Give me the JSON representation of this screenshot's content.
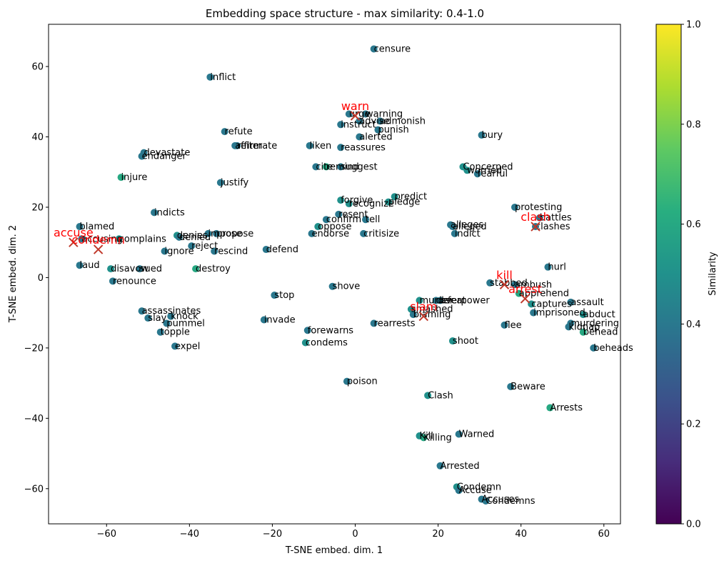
{
  "chart_data": {
    "type": "scatter",
    "title": "Embedding space structure - max similarity: 0.4-1.0",
    "xlabel": "T-SNE embed. dim. 1",
    "ylabel": "T-SNE embed. dim. 2",
    "xlim": [
      -74,
      64
    ],
    "ylim": [
      -70,
      72
    ],
    "xticks": [
      -60,
      -40,
      -20,
      0,
      20,
      40,
      60
    ],
    "yticks": [
      -60,
      -40,
      -20,
      0,
      20,
      40,
      60
    ],
    "grid": false,
    "colorbar": {
      "label": "Similarity",
      "colormap": "viridis",
      "range": [
        0.0,
        1.0
      ],
      "ticks": [
        "0.0",
        "0.2",
        "0.4",
        "0.6",
        "0.8",
        "1.0"
      ]
    },
    "anchors": [
      {
        "label": "warn",
        "x": 0,
        "y": 46,
        "color": "#ff0000"
      },
      {
        "label": "accuse",
        "x": -68,
        "y": 10,
        "color": "#ff0000"
      },
      {
        "label": "condemn",
        "x": -62,
        "y": 8,
        "color": "#ff0000"
      },
      {
        "label": "clash",
        "x": 43.5,
        "y": 14.5,
        "color": "#ff0000"
      },
      {
        "label": "kill",
        "x": 36,
        "y": -2,
        "color": "#ff0000"
      },
      {
        "label": "arrest",
        "x": 41,
        "y": -6,
        "color": "#ff0000"
      },
      {
        "label": "slam",
        "x": 16.5,
        "y": -11,
        "color": "#ff0000"
      }
    ],
    "points": [
      {
        "label": "censure",
        "x": 4.5,
        "y": 65,
        "s": 0.4
      },
      {
        "label": "inflict",
        "x": -35,
        "y": 57,
        "s": 0.4
      },
      {
        "label": "urge",
        "x": -1.5,
        "y": 46.5,
        "s": 0.4
      },
      {
        "label": "warning",
        "x": 2.5,
        "y": 46.5,
        "s": 0.4
      },
      {
        "label": "advise",
        "x": 1,
        "y": 44.5,
        "s": 0.4
      },
      {
        "label": "admonish",
        "x": 6,
        "y": 44.5,
        "s": 0.4
      },
      {
        "label": "instruct",
        "x": -3.5,
        "y": 43.5,
        "s": 0.4
      },
      {
        "label": "punish",
        "x": 5.5,
        "y": 42,
        "s": 0.4
      },
      {
        "label": "alerted",
        "x": 1,
        "y": 40,
        "s": 0.4
      },
      {
        "label": "bury",
        "x": 30.5,
        "y": 40.5,
        "s": 0.4
      },
      {
        "label": "refute",
        "x": -31.5,
        "y": 41.5,
        "s": 0.4
      },
      {
        "label": "affirm",
        "x": -29,
        "y": 37.5,
        "s": 0.4
      },
      {
        "label": "reiterate",
        "x": -28.5,
        "y": 37.5,
        "s": 0.4
      },
      {
        "label": "liken",
        "x": -11,
        "y": 37.5,
        "s": 0.4
      },
      {
        "label": "reassures",
        "x": -3.5,
        "y": 37,
        "s": 0.4
      },
      {
        "label": "devastate",
        "x": -51,
        "y": 35.5,
        "s": 0.4
      },
      {
        "label": "endanger",
        "x": -51.5,
        "y": 34.5,
        "s": 0.4
      },
      {
        "label": "injure",
        "x": -56.5,
        "y": 28.5,
        "s": 0.6
      },
      {
        "label": "justify",
        "x": -32.5,
        "y": 27,
        "s": 0.4
      },
      {
        "label": "cite",
        "x": -9.5,
        "y": 31.5,
        "s": 0.4
      },
      {
        "label": "remind",
        "x": -7,
        "y": 31.5,
        "s": 0.6
      },
      {
        "label": "suggest",
        "x": -3.5,
        "y": 31.5,
        "s": 0.4
      },
      {
        "label": "Concerned",
        "x": 26,
        "y": 31.5,
        "s": 0.5
      },
      {
        "label": "worried",
        "x": 27,
        "y": 30.5,
        "s": 0.5
      },
      {
        "label": "fearful",
        "x": 29.5,
        "y": 29.5,
        "s": 0.4
      },
      {
        "label": "forgive",
        "x": -3.5,
        "y": 22,
        "s": 0.5
      },
      {
        "label": "recognize",
        "x": -1.5,
        "y": 21,
        "s": 0.5
      },
      {
        "label": "predict",
        "x": 9.5,
        "y": 23,
        "s": 0.5
      },
      {
        "label": "pledge",
        "x": 8,
        "y": 21.5,
        "s": 0.5
      },
      {
        "label": "indicts",
        "x": -48.5,
        "y": 18.5,
        "s": 0.4
      },
      {
        "label": "protesting",
        "x": 38.5,
        "y": 20,
        "s": 0.4
      },
      {
        "label": "resent",
        "x": -4,
        "y": 18,
        "s": 0.4
      },
      {
        "label": "tell",
        "x": 2.5,
        "y": 16.5,
        "s": 0.4
      },
      {
        "label": "oppose",
        "x": -9,
        "y": 14.5,
        "s": 0.5
      },
      {
        "label": "confirm",
        "x": -7,
        "y": 16.5,
        "s": 0.4
      },
      {
        "label": "alleges",
        "x": 23,
        "y": 15,
        "s": 0.4
      },
      {
        "label": "alleged",
        "x": 23.5,
        "y": 14.5,
        "s": 0.4
      },
      {
        "label": "battles",
        "x": 44.5,
        "y": 17,
        "s": 0.4
      },
      {
        "label": "clashes",
        "x": 43.5,
        "y": 14.5,
        "s": 0.4
      },
      {
        "label": "endorse",
        "x": -10.5,
        "y": 12.5,
        "s": 0.4
      },
      {
        "label": "critisize",
        "x": 2,
        "y": 12.5,
        "s": 0.4
      },
      {
        "label": "indict",
        "x": 24,
        "y": 12.5,
        "s": 0.4
      },
      {
        "label": "blamed",
        "x": -66.5,
        "y": 14.5,
        "s": 0.4
      },
      {
        "label": "accusing",
        "x": -66,
        "y": 11,
        "s": 0.4
      },
      {
        "label": "complains",
        "x": -57,
        "y": 11,
        "s": 0.5
      },
      {
        "label": "denies",
        "x": -43,
        "y": 12,
        "s": 0.5
      },
      {
        "label": "denied",
        "x": -42.5,
        "y": 11.5,
        "s": 0.4
      },
      {
        "label": "impose",
        "x": -35.5,
        "y": 12.5,
        "s": 0.4
      },
      {
        "label": "propose",
        "x": -33.5,
        "y": 12.5,
        "s": 0.4
      },
      {
        "label": "reject",
        "x": -39.5,
        "y": 9,
        "s": 0.4
      },
      {
        "label": "rescind",
        "x": -34,
        "y": 7.5,
        "s": 0.4
      },
      {
        "label": "defend",
        "x": -21.5,
        "y": 8,
        "s": 0.4
      },
      {
        "label": "ignore",
        "x": -46,
        "y": 7.5,
        "s": 0.4
      },
      {
        "label": "laud",
        "x": -66.5,
        "y": 3.5,
        "s": 0.4
      },
      {
        "label": "disavow",
        "x": -59,
        "y": 2.5,
        "s": 0.5
      },
      {
        "label": "sued",
        "x": -52,
        "y": 2.5,
        "s": 0.4
      },
      {
        "label": "renounce",
        "x": -58.5,
        "y": -1,
        "s": 0.4
      },
      {
        "label": "destroy",
        "x": -38.5,
        "y": 2.5,
        "s": 0.6
      },
      {
        "label": "hurl",
        "x": 46.5,
        "y": 3,
        "s": 0.4
      },
      {
        "label": "shove",
        "x": -5.5,
        "y": -2.5,
        "s": 0.4
      },
      {
        "label": "stop",
        "x": -19.5,
        "y": -5,
        "s": 0.4
      },
      {
        "label": "assassinates",
        "x": -51.5,
        "y": -9.5,
        "s": 0.4
      },
      {
        "label": "slay",
        "x": -50,
        "y": -11.5,
        "s": 0.4
      },
      {
        "label": "knock",
        "x": -44.5,
        "y": -11,
        "s": 0.4
      },
      {
        "label": "pummel",
        "x": -45.5,
        "y": -13,
        "s": 0.4
      },
      {
        "label": "topple",
        "x": -47,
        "y": -15.5,
        "s": 0.4
      },
      {
        "label": "expel",
        "x": -43.5,
        "y": -19.5,
        "s": 0.4
      },
      {
        "label": "invade",
        "x": -22,
        "y": -12,
        "s": 0.4
      },
      {
        "label": "forewarns",
        "x": -11.5,
        "y": -15,
        "s": 0.4
      },
      {
        "label": "condems",
        "x": -12,
        "y": -18.5,
        "s": 0.5
      },
      {
        "label": "stabbed",
        "x": 32.5,
        "y": -1.5,
        "s": 0.4
      },
      {
        "label": "ambush",
        "x": 38.5,
        "y": -2,
        "s": 0.4
      },
      {
        "label": "apprehend",
        "x": 39.5,
        "y": -4.5,
        "s": 0.6
      },
      {
        "label": "overpower",
        "x": 20.5,
        "y": -6.5,
        "s": 0.4
      },
      {
        "label": "murder",
        "x": 15.5,
        "y": -6.5,
        "s": 0.5
      },
      {
        "label": "defeat",
        "x": 19.5,
        "y": -6.5,
        "s": 0.4
      },
      {
        "label": "smashed",
        "x": 13.5,
        "y": -9,
        "s": 0.5
      },
      {
        "label": "blaming",
        "x": 14,
        "y": -10.5,
        "s": 0.4
      },
      {
        "label": "rearrests",
        "x": 4.5,
        "y": -13,
        "s": 0.4
      },
      {
        "label": "assault",
        "x": 52,
        "y": -7,
        "s": 0.4
      },
      {
        "label": "captures",
        "x": 42.5,
        "y": -7.5,
        "s": 0.5
      },
      {
        "label": "imprisoned",
        "x": 43,
        "y": -10,
        "s": 0.4
      },
      {
        "label": "abduct",
        "x": 55,
        "y": -10.5,
        "s": 0.5
      },
      {
        "label": "murdering",
        "x": 52,
        "y": -13,
        "s": 0.4
      },
      {
        "label": "kidnap",
        "x": 51.5,
        "y": -14,
        "s": 0.4
      },
      {
        "label": "behead",
        "x": 55,
        "y": -15.5,
        "s": 0.6
      },
      {
        "label": "beheads",
        "x": 57.5,
        "y": -20,
        "s": 0.4
      },
      {
        "label": "flee",
        "x": 36,
        "y": -13.5,
        "s": 0.4
      },
      {
        "label": "shoot",
        "x": 23.5,
        "y": -18,
        "s": 0.5
      },
      {
        "label": "poison",
        "x": -2,
        "y": -29.5,
        "s": 0.4
      },
      {
        "label": "Clash",
        "x": 17.5,
        "y": -33.5,
        "s": 0.5
      },
      {
        "label": "Beware",
        "x": 37.5,
        "y": -31,
        "s": 0.4
      },
      {
        "label": "Arrests",
        "x": 47,
        "y": -37,
        "s": 0.6
      },
      {
        "label": "Kill",
        "x": 15.5,
        "y": -45,
        "s": 0.5
      },
      {
        "label": "Killing",
        "x": 16.5,
        "y": -45.5,
        "s": 0.6
      },
      {
        "label": "Warned",
        "x": 25,
        "y": -44.5,
        "s": 0.4
      },
      {
        "label": "Arrested",
        "x": 20.5,
        "y": -53.5,
        "s": 0.4
      },
      {
        "label": "Condemn",
        "x": 24.5,
        "y": -59.5,
        "s": 0.5
      },
      {
        "label": "Accuse",
        "x": 25,
        "y": -60.5,
        "s": 0.4
      },
      {
        "label": "Accuses",
        "x": 30.5,
        "y": -63,
        "s": 0.4
      },
      {
        "label": "Condemns",
        "x": 31.5,
        "y": -63.5,
        "s": 0.4
      }
    ]
  }
}
